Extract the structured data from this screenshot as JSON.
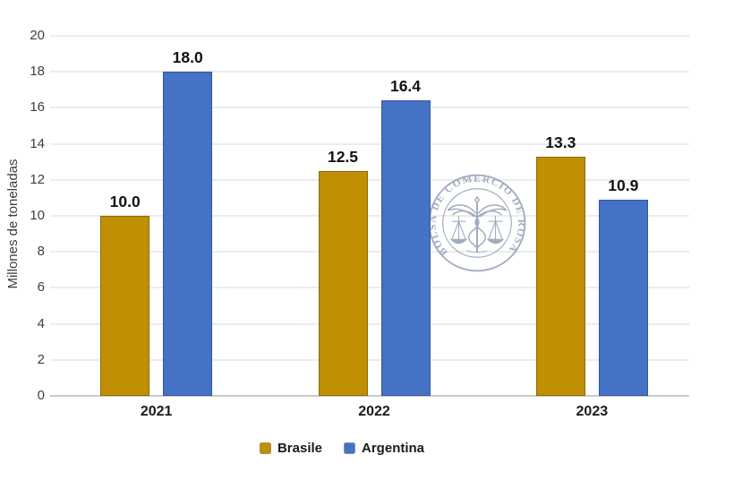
{
  "chart_data": {
    "type": "bar",
    "title": "",
    "categories": [
      "2021",
      "2022",
      "2023"
    ],
    "series": [
      {
        "name": "Brasile",
        "values": [
          10.0,
          12.5,
          13.3
        ],
        "value_labels": [
          "10.0",
          "12.5",
          "13.3"
        ],
        "color": "#C18F04",
        "border_color": "#8A6A00",
        "legend_border_color": "#A58E42"
      },
      {
        "name": "Argentina",
        "values": [
          18.0,
          16.4,
          10.9
        ],
        "value_labels": [
          "18.0",
          "16.4",
          "10.9"
        ],
        "color": "#4472C4",
        "border_color": "#31589E",
        "legend_border_color": "#7A90B8"
      }
    ],
    "xlabel": "",
    "ylabel": "Millones de toneladas",
    "ylim": [
      0,
      20
    ],
    "yticks": [
      "0",
      "2",
      "4",
      "6",
      "8",
      "10",
      "12",
      "14",
      "16",
      "18",
      "20"
    ],
    "grid": true,
    "legend_position": "bottom",
    "value_labels_shown": true
  },
  "watermark": {
    "seal_text": "BOLSA DE COMERCIO DE ROSARIO",
    "color": "#8B98B2"
  },
  "colors": {
    "grid_line": "#ececec",
    "axis_line": "#c9c9c9",
    "background": "#ffffff"
  }
}
